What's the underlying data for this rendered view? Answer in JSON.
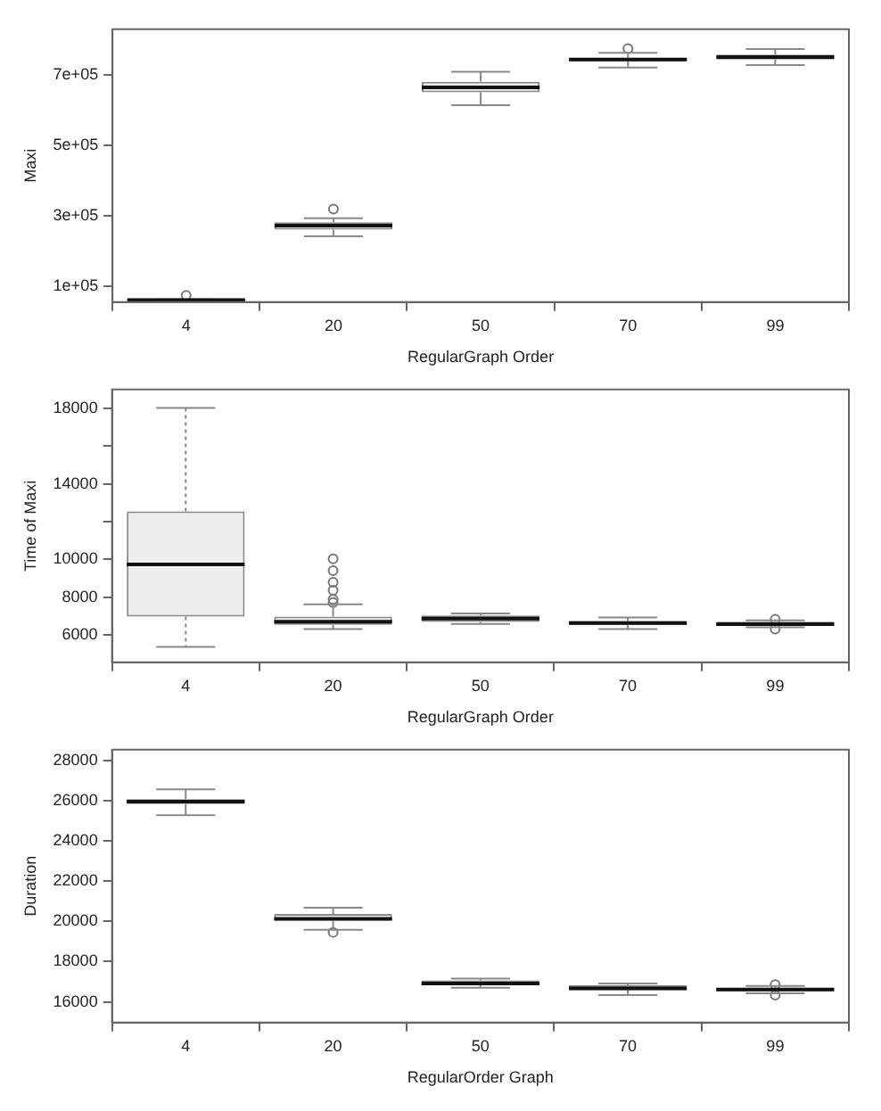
{
  "chart_data": [
    {
      "type": "box",
      "xlabel": "RegularGraph Order",
      "ylabel": "Maxi",
      "categories": [
        "4",
        "20",
        "50",
        "70",
        "99"
      ],
      "ylim": [
        55000,
        830000
      ],
      "yticks": [
        {
          "value": 100000,
          "label": "1e+05"
        },
        {
          "value": 300000,
          "label": "3e+05"
        },
        {
          "value": 500000,
          "label": "5e+05"
        },
        {
          "value": 700000,
          "label": "7e+05"
        }
      ],
      "grid": false,
      "boxes": [
        {
          "low": 59000,
          "q1": 60000,
          "median": 61000,
          "q3": 62000,
          "high": 63000,
          "outliers": [
            74000
          ]
        },
        {
          "low": 242000,
          "q1": 261000,
          "median": 272000,
          "q3": 282000,
          "high": 293000,
          "outliers": [
            319000
          ]
        },
        {
          "low": 614000,
          "q1": 651000,
          "median": 665000,
          "q3": 681000,
          "high": 709000
        },
        {
          "low": 721000,
          "q1": 739000,
          "median": 744000,
          "q3": 749000,
          "high": 763000,
          "outliers": [
            775000
          ]
        },
        {
          "low": 728000,
          "q1": 744000,
          "median": 751000,
          "q3": 758000,
          "high": 774000
        }
      ]
    },
    {
      "type": "box",
      "xlabel": "RegularGraph Order",
      "ylabel": "Time of Maxi",
      "categories": [
        "4",
        "20",
        "50",
        "70",
        "99"
      ],
      "ylim": [
        4570,
        18980
      ],
      "yticks": [
        6000,
        8000,
        10000,
        {
          "value": 12000,
          "label": null
        },
        14000,
        {
          "value": 16000,
          "label": null
        },
        18000
      ],
      "grid": false,
      "boxes": [
        {
          "low": 5380,
          "q1": 6980,
          "median": 9740,
          "q3": 12540,
          "high": 18000
        },
        {
          "low": 6330,
          "q1": 6550,
          "median": 6720,
          "q3": 6980,
          "high": 7630,
          "outliers": [
            10030,
            9410,
            8800,
            8370,
            7890,
            7730
          ]
        },
        {
          "low": 6600,
          "q1": 6700,
          "median": 6880,
          "q3": 7050,
          "high": 7150
        },
        {
          "low": 6330,
          "q1": 6550,
          "median": 6650,
          "q3": 6750,
          "high": 6940
        },
        {
          "low": 6420,
          "q1": 6490,
          "median": 6590,
          "q3": 6720,
          "high": 6780,
          "outliers": [
            6850,
            6330
          ]
        }
      ]
    },
    {
      "type": "box",
      "xlabel": "RegularOrder Graph",
      "ylabel": "Duration",
      "categories": [
        "4",
        "20",
        "50",
        "70",
        "99"
      ],
      "ylim": [
        14970,
        28520
      ],
      "yticks": [
        16000,
        18000,
        20000,
        22000,
        24000,
        26000,
        28000
      ],
      "grid": false,
      "boxes": [
        {
          "low": 25270,
          "q1": 25820,
          "median": 25940,
          "q3": 26060,
          "high": 26550
        },
        {
          "low": 19580,
          "q1": 20030,
          "median": 20120,
          "q3": 20360,
          "high": 20670,
          "outliers": [
            19450
          ]
        },
        {
          "low": 16700,
          "q1": 16820,
          "median": 16910,
          "q3": 17060,
          "high": 17150
        },
        {
          "low": 16330,
          "q1": 16580,
          "median": 16670,
          "q3": 16820,
          "high": 16910
        },
        {
          "low": 16420,
          "q1": 16520,
          "median": 16610,
          "q3": 16700,
          "high": 16790,
          "outliers": [
            16850,
            16330
          ]
        }
      ]
    }
  ]
}
